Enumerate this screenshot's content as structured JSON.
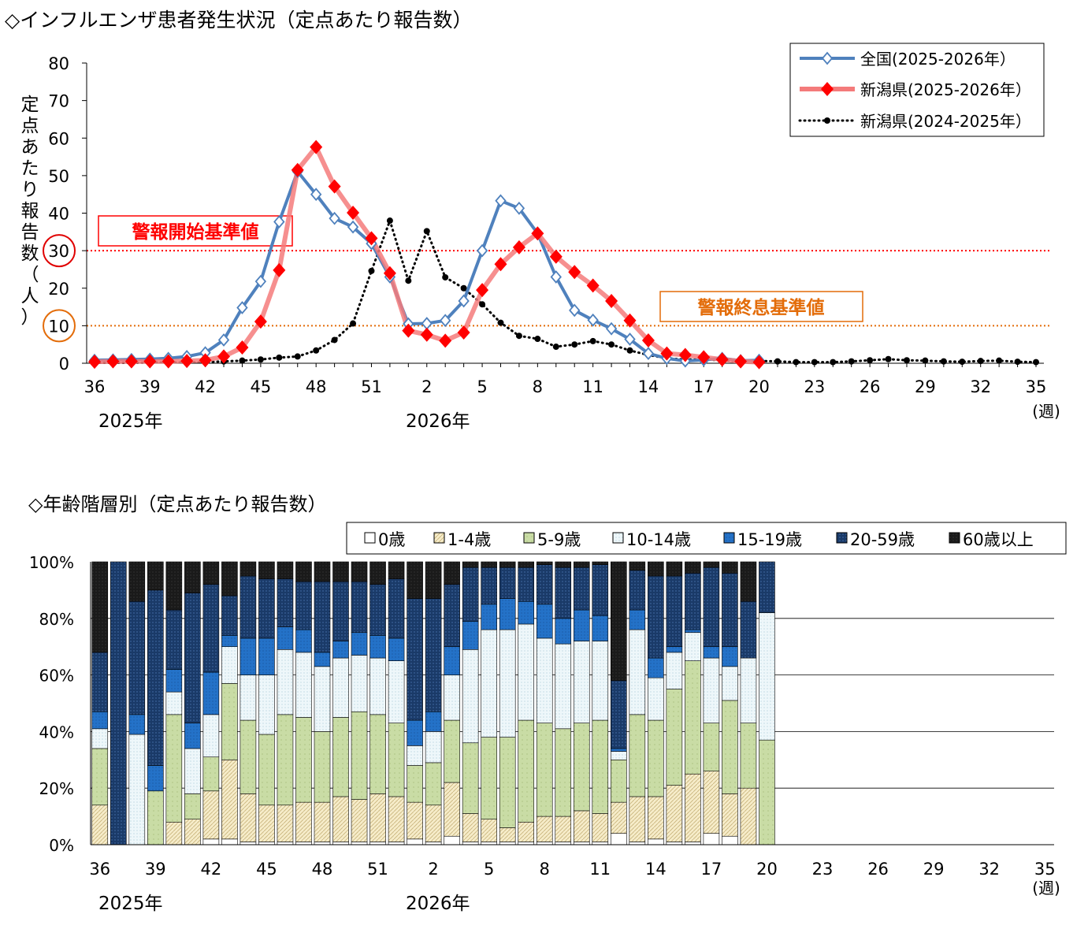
{
  "top": {
    "title": "◇インフルエンザ患者発生状況（定点あたり報告数）",
    "bottom_title": "◇年齢階層別（定点あたり報告数）"
  },
  "colors": {
    "national": "#4f81bd",
    "niigata": "#ff0000",
    "niigata_line": "#f47b7b",
    "prev": "#000000",
    "alert": "#ff0000",
    "end": "#e36c09",
    "age_0": "#ffffff",
    "age_1_4": "#f4e7c0",
    "age_5_9": "#c6d9a0",
    "age_10_14": "#e8f4f8",
    "age_15_19": "#1f6fc5",
    "age_20_59": "#17375e",
    "age_60": "#1a1a1a"
  },
  "chart_data": [
    {
      "type": "line",
      "title": "◇インフルエンザ患者発生状況（定点あたり報告数）",
      "ylabel": "定点あたり報告数（人）",
      "xlabel": "(週)",
      "ylim": [
        0,
        80
      ],
      "yticks": [
        "0",
        "10",
        "20",
        "30",
        "40",
        "50",
        "60",
        "70",
        "80"
      ],
      "x_tick_labels": [
        "36",
        "39",
        "42",
        "45",
        "48",
        "51",
        "2",
        "5",
        "8",
        "11",
        "14",
        "17",
        "20",
        "23",
        "26",
        "29",
        "32",
        "35"
      ],
      "year_labels": [
        "2025年",
        "2026年"
      ],
      "weeks": [
        "36",
        "37",
        "38",
        "39",
        "40",
        "41",
        "42",
        "43",
        "44",
        "45",
        "46",
        "47",
        "48",
        "49",
        "50",
        "51",
        "52",
        "1",
        "2",
        "3",
        "4",
        "5",
        "6",
        "7",
        "8",
        "9",
        "10",
        "11",
        "12",
        "13",
        "14",
        "15",
        "16",
        "17",
        "18",
        "19",
        "20",
        "21",
        "22",
        "23",
        "24",
        "25",
        "26",
        "27",
        "28",
        "29",
        "30",
        "31",
        "32",
        "33",
        "34",
        "35"
      ],
      "legend_position": "top-right",
      "reference_lines": [
        {
          "label": "警報開始基準値",
          "value": 30
        },
        {
          "label": "警報終息基準値",
          "value": 10
        }
      ],
      "series": [
        {
          "name": "全国(2025-2026年）",
          "values": [
            0.8,
            0.9,
            1.0,
            1.1,
            1.3,
            1.8,
            2.8,
            6.2,
            14.8,
            21.8,
            37.7,
            51.1,
            45.0,
            38.6,
            36.3,
            31.9,
            23.0,
            10.5,
            10.6,
            11.4,
            16.6,
            30.0,
            43.3,
            41.3,
            34.6,
            23.0,
            14.1,
            11.5,
            9.2,
            6.4,
            2.6,
            1.3,
            0.6,
            0.9,
            1.3,
            0.7,
            0.8
          ]
        },
        {
          "name": "新潟県(2025-2026年）",
          "values": [
            0.4,
            0.5,
            0.5,
            0.5,
            0.5,
            0.6,
            0.8,
            1.8,
            4.2,
            11.1,
            24.8,
            51.5,
            57.6,
            47.1,
            40.1,
            33.3,
            24.0,
            8.7,
            7.6,
            6.0,
            8.2,
            19.5,
            26.4,
            30.9,
            34.6,
            28.4,
            24.3,
            20.7,
            16.6,
            11.4,
            6.1,
            2.6,
            2.2,
            1.6,
            1.0,
            0.5,
            0.3
          ]
        },
        {
          "name": "新潟県(2024-2025年）",
          "values": [
            0.1,
            0.1,
            0.1,
            0.2,
            0.2,
            0.2,
            0.3,
            0.5,
            0.7,
            1.0,
            1.5,
            1.8,
            3.4,
            6.2,
            10.6,
            24.6,
            38.0,
            22.0,
            35.2,
            22.9,
            20.0,
            15.7,
            10.8,
            7.3,
            6.5,
            4.4,
            5.0,
            5.9,
            5.0,
            3.4,
            2.2,
            1.3,
            1.0,
            1.0,
            0.8,
            0.6,
            0.6,
            0.5,
            0.3,
            0.3,
            0.3,
            0.5,
            0.8,
            1.1,
            0.8,
            0.7,
            0.5,
            0.4,
            0.6,
            0.7,
            0.4,
            0.3
          ]
        }
      ]
    },
    {
      "type": "bar",
      "stacked": "percent",
      "title": "◇年齢階層別（定点あたり報告数）",
      "xlabel": "(週)",
      "ylim": [
        0,
        100
      ],
      "yticks": [
        "0%",
        "20%",
        "40%",
        "60%",
        "80%",
        "100%"
      ],
      "x_tick_labels": [
        "36",
        "39",
        "42",
        "45",
        "48",
        "51",
        "2",
        "5",
        "8",
        "11",
        "14",
        "17",
        "20",
        "23",
        "26",
        "29",
        "32",
        "35"
      ],
      "year_labels": [
        "2025年",
        "2026年"
      ],
      "legend_position": "top",
      "series": [
        {
          "name": "0歳",
          "values": [
            0,
            0,
            0,
            0,
            0,
            0,
            2,
            2,
            1,
            1,
            1,
            1,
            1,
            1,
            1,
            1,
            1,
            2,
            1,
            3,
            1,
            1,
            1,
            1,
            1,
            1,
            1,
            1,
            4,
            1,
            2,
            1,
            1,
            4,
            3,
            0,
            0
          ]
        },
        {
          "name": "1-4歳",
          "values": [
            14,
            0,
            0,
            0,
            8,
            9,
            17,
            28,
            17,
            13,
            13,
            14,
            14,
            16,
            15,
            17,
            16,
            13,
            13,
            19,
            10,
            8,
            5,
            7,
            9,
            9,
            11,
            10,
            11,
            16,
            15,
            20,
            24,
            22,
            15,
            20,
            0
          ]
        },
        {
          "name": "5-9歳",
          "values": [
            20,
            0,
            0,
            19,
            38,
            9,
            12,
            27,
            26,
            25,
            32,
            30,
            25,
            28,
            31,
            28,
            26,
            13,
            15,
            22,
            25,
            29,
            32,
            36,
            33,
            31,
            31,
            33,
            15,
            29,
            27,
            34,
            40,
            17,
            33,
            23,
            37
          ]
        },
        {
          "name": "10-14歳",
          "values": [
            7,
            0,
            39,
            0,
            8,
            16,
            15,
            13,
            16,
            21,
            23,
            23,
            23,
            21,
            20,
            20,
            22,
            7,
            11,
            16,
            33,
            38,
            38,
            34,
            30,
            30,
            29,
            28,
            3,
            30,
            15,
            13,
            10,
            23,
            12,
            23,
            45
          ]
        },
        {
          "name": "15-19歳",
          "values": [
            6,
            0,
            7,
            9,
            8,
            9,
            15,
            4,
            13,
            13,
            8,
            8,
            5,
            6,
            8,
            8,
            8,
            9,
            7,
            10,
            10,
            9,
            11,
            8,
            12,
            9,
            11,
            9,
            1,
            7,
            7,
            2,
            1,
            4,
            7,
            0,
            0
          ]
        },
        {
          "name": "20-59歳",
          "values": [
            21,
            100,
            40,
            62,
            21,
            46,
            31,
            14,
            22,
            21,
            17,
            17,
            25,
            21,
            18,
            18,
            21,
            43,
            40,
            22,
            19,
            13,
            11,
            12,
            14,
            18,
            15,
            18,
            24,
            14,
            29,
            25,
            20,
            28,
            26,
            20,
            18
          ]
        },
        {
          "name": "60歳以上",
          "values": [
            32,
            0,
            14,
            10,
            17,
            11,
            8,
            12,
            5,
            6,
            6,
            7,
            7,
            7,
            7,
            8,
            6,
            13,
            13,
            8,
            2,
            2,
            2,
            2,
            1,
            2,
            2,
            1,
            42,
            3,
            5,
            5,
            4,
            2,
            4,
            14,
            0
          ]
        }
      ]
    }
  ]
}
